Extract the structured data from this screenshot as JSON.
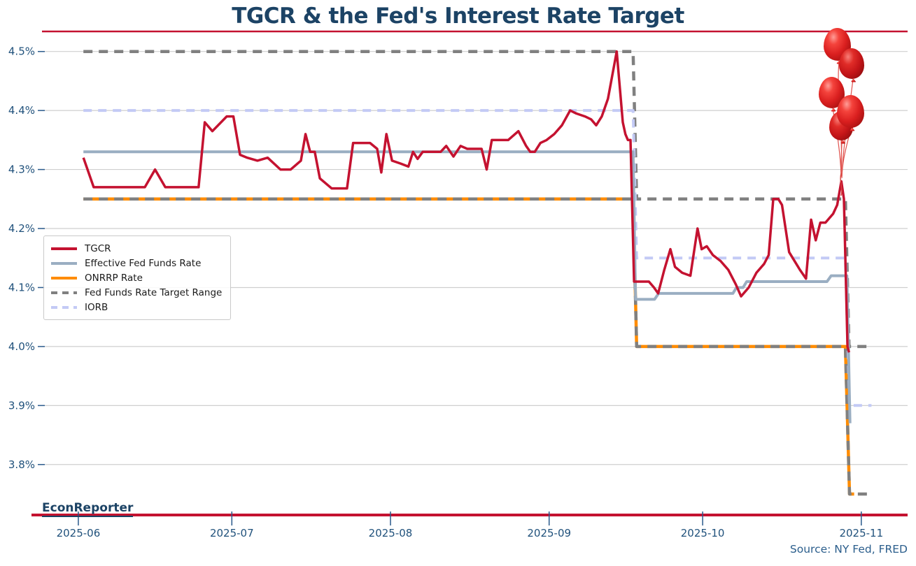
{
  "title": "TGCR & the Fed's Interest Rate Target",
  "footer": {
    "brand": "EconReporter",
    "source": "Source: NY Fed, FRED"
  },
  "colors": {
    "accent_red": "#C41230",
    "title_navy": "#1C4365",
    "axis_text": "#21527C",
    "axis_tick": "#2A5A8C",
    "grid": "#CFCFCF",
    "source_text": "#2B5E8C",
    "legend_text": "#1A1A1A",
    "balloon_red": "#D91F1F"
  },
  "legend": {
    "items": [
      {
        "label": "TGCR",
        "color": "#C41230",
        "dash": false
      },
      {
        "label": "Effective Fed Funds Rate",
        "color": "#9AAEC2",
        "dash": false
      },
      {
        "label": "ONRRP Rate",
        "color": "#FF8C00",
        "dash": false
      },
      {
        "label": "Fed Funds Rate Target Range",
        "color": "#808080",
        "dash": true
      },
      {
        "label": "IORB",
        "color": "#C3CAF5",
        "dash": true
      }
    ]
  },
  "chart_data": {
    "type": "line",
    "title": "TGCR & the Fed's Interest Rate Target",
    "xlabel": "",
    "ylabel": "",
    "grid": "horizontal-only",
    "legend_position": "center-left",
    "x_axis": {
      "unit": "days since 2025-06-01",
      "domain_days": [
        -7.1,
        162.05
      ],
      "ticks": [
        {
          "day": 0,
          "label": "2025-06"
        },
        {
          "day": 30,
          "label": "2025-07"
        },
        {
          "day": 61,
          "label": "2025-08"
        },
        {
          "day": 92,
          "label": "2025-09"
        },
        {
          "day": 122,
          "label": "2025-10"
        },
        {
          "day": 153,
          "label": "2025-11"
        }
      ]
    },
    "y_axis": {
      "unit": "percent",
      "domain": [
        3.705,
        4.534
      ],
      "ticks": [
        {
          "v": 4.5,
          "label": "4.5%"
        },
        {
          "v": 4.4,
          "label": "4.4%"
        },
        {
          "v": 4.3,
          "label": "4.3%"
        },
        {
          "v": 4.2,
          "label": "4.2%"
        },
        {
          "v": 4.1,
          "label": "4.1%"
        },
        {
          "v": 4.0,
          "label": "4.0%"
        },
        {
          "v": 3.9,
          "label": "3.9%"
        },
        {
          "v": 3.8,
          "label": "3.8%"
        }
      ]
    },
    "series": [
      {
        "id": "onrrp",
        "legend": "ONRRP Rate",
        "color": "#FF8C00",
        "width": 4.5,
        "dash": null,
        "points": [
          [
            1,
            4.25
          ],
          [
            108.4,
            4.25
          ],
          [
            109.1,
            4.0
          ],
          [
            149.9,
            4.0
          ],
          [
            150.7,
            3.75
          ],
          [
            151.6,
            3.75
          ]
        ]
      },
      {
        "id": "target-upper",
        "legend": "Fed Funds Rate Target Range",
        "color": "#808080",
        "width": 4.5,
        "dash": "13 9",
        "points": [
          [
            1,
            4.5
          ],
          [
            108.4,
            4.5
          ],
          [
            109.1,
            4.25
          ],
          [
            149.9,
            4.25
          ],
          [
            150.6,
            4.0
          ],
          [
            154.4,
            4.0
          ]
        ]
      },
      {
        "id": "target-lower",
        "legend": "Fed Funds Rate Target Range",
        "color": "#808080",
        "width": 4.5,
        "dash": "13 9",
        "points": [
          [
            1,
            4.25
          ],
          [
            108.4,
            4.25
          ],
          [
            109.1,
            4.0
          ],
          [
            149.9,
            4.0
          ],
          [
            150.7,
            3.75
          ],
          [
            154.2,
            3.75
          ]
        ]
      },
      {
        "id": "iorb",
        "legend": "IORB",
        "color": "#C3CAF5",
        "width": 4,
        "dash": "12 9",
        "points": [
          [
            1,
            4.4
          ],
          [
            108.4,
            4.4
          ],
          [
            109.1,
            4.15
          ],
          [
            149.9,
            4.15
          ],
          [
            150.7,
            3.9
          ],
          [
            155,
            3.9
          ]
        ]
      },
      {
        "id": "effr",
        "legend": "Effective Fed Funds Rate",
        "color": "#9AAEC2",
        "width": 4,
        "dash": null,
        "points": [
          [
            1,
            4.33
          ],
          [
            108.4,
            4.33
          ],
          [
            108.9,
            4.08
          ],
          [
            112.6,
            4.08
          ],
          [
            113.4,
            4.09
          ],
          [
            127.9,
            4.09
          ],
          [
            128.6,
            4.1
          ],
          [
            129.9,
            4.1
          ],
          [
            130.6,
            4.11
          ],
          [
            146.3,
            4.11
          ],
          [
            147.1,
            4.12
          ],
          [
            150.2,
            4.12
          ],
          [
            150.8,
            3.87
          ]
        ]
      },
      {
        "id": "tgcr",
        "legend": "TGCR",
        "color": "#C41230",
        "width": 3.5,
        "dash": null,
        "points": [
          [
            1,
            4.32
          ],
          [
            3,
            4.27
          ],
          [
            13,
            4.27
          ],
          [
            15,
            4.3
          ],
          [
            17,
            4.27
          ],
          [
            23.5,
            4.27
          ],
          [
            24.7,
            4.38
          ],
          [
            26.2,
            4.365
          ],
          [
            29,
            4.39
          ],
          [
            30.3,
            4.39
          ],
          [
            31.6,
            4.325
          ],
          [
            33,
            4.32
          ],
          [
            35,
            4.315
          ],
          [
            37,
            4.32
          ],
          [
            39.5,
            4.3
          ],
          [
            41.5,
            4.3
          ],
          [
            43.5,
            4.315
          ],
          [
            44.4,
            4.36
          ],
          [
            45.3,
            4.33
          ],
          [
            46.2,
            4.33
          ],
          [
            47.2,
            4.285
          ],
          [
            49.5,
            4.268
          ],
          [
            52.5,
            4.268
          ],
          [
            53.7,
            4.345
          ],
          [
            57,
            4.345
          ],
          [
            58.4,
            4.335
          ],
          [
            59.2,
            4.295
          ],
          [
            60.2,
            4.36
          ],
          [
            61.3,
            4.315
          ],
          [
            63,
            4.31
          ],
          [
            64.5,
            4.305
          ],
          [
            65.4,
            4.33
          ],
          [
            66.3,
            4.318
          ],
          [
            67.3,
            4.33
          ],
          [
            70.8,
            4.33
          ],
          [
            71.9,
            4.34
          ],
          [
            73.3,
            4.322
          ],
          [
            74.7,
            4.34
          ],
          [
            76,
            4.335
          ],
          [
            78.8,
            4.335
          ],
          [
            79.8,
            4.3
          ],
          [
            80.8,
            4.35
          ],
          [
            84,
            4.35
          ],
          [
            86,
            4.365
          ],
          [
            87.5,
            4.34
          ],
          [
            88.3,
            4.33
          ],
          [
            89.2,
            4.33
          ],
          [
            90.3,
            4.345
          ],
          [
            91.5,
            4.35
          ],
          [
            93,
            4.36
          ],
          [
            94.5,
            4.375
          ],
          [
            96.1,
            4.4
          ],
          [
            97.3,
            4.395
          ],
          [
            99,
            4.39
          ],
          [
            100.2,
            4.385
          ],
          [
            101.2,
            4.375
          ],
          [
            102.3,
            4.39
          ],
          [
            103.5,
            4.42
          ],
          [
            105.2,
            4.5
          ],
          [
            105.9,
            4.43
          ],
          [
            106.4,
            4.38
          ],
          [
            106.9,
            4.36
          ],
          [
            107.4,
            4.35
          ],
          [
            107.9,
            4.35
          ],
          [
            108.6,
            4.11
          ],
          [
            111.5,
            4.11
          ],
          [
            112.5,
            4.1
          ],
          [
            113.3,
            4.09
          ],
          [
            114.5,
            4.13
          ],
          [
            115.7,
            4.165
          ],
          [
            116.6,
            4.135
          ],
          [
            118,
            4.125
          ],
          [
            119.6,
            4.12
          ],
          [
            121,
            4.2
          ],
          [
            121.8,
            4.165
          ],
          [
            122.8,
            4.17
          ],
          [
            124,
            4.155
          ],
          [
            125.5,
            4.145
          ],
          [
            127,
            4.13
          ],
          [
            128.5,
            4.105
          ],
          [
            129.5,
            4.085
          ],
          [
            131,
            4.1
          ],
          [
            132.5,
            4.125
          ],
          [
            134,
            4.14
          ],
          [
            134.9,
            4.155
          ],
          [
            135.8,
            4.25
          ],
          [
            136.8,
            4.25
          ],
          [
            137.5,
            4.24
          ],
          [
            138.2,
            4.2
          ],
          [
            138.9,
            4.16
          ],
          [
            139.6,
            4.15
          ],
          [
            141,
            4.13
          ],
          [
            142.2,
            4.115
          ],
          [
            143.2,
            4.215
          ],
          [
            144.1,
            4.18
          ],
          [
            145,
            4.21
          ],
          [
            146,
            4.21
          ],
          [
            147.5,
            4.225
          ],
          [
            148.3,
            4.24
          ],
          [
            149.1,
            4.28
          ],
          [
            149.6,
            4.25
          ],
          [
            150.3,
            4.0
          ],
          [
            150.6,
            3.99
          ]
        ]
      }
    ]
  }
}
